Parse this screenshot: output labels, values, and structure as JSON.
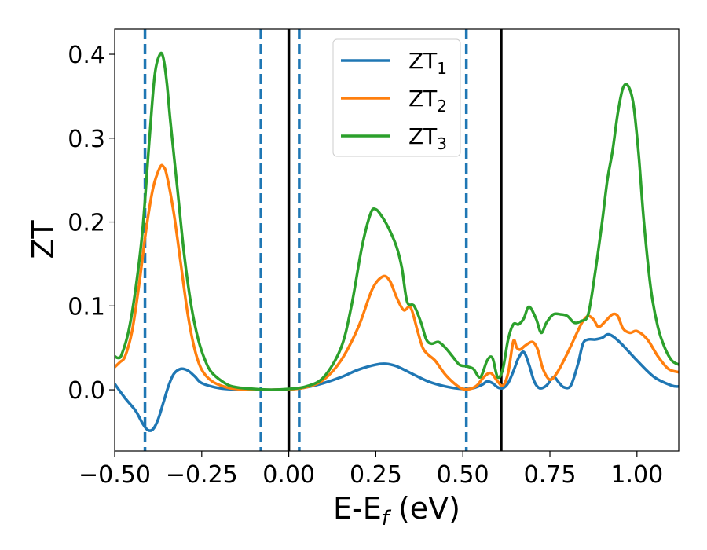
{
  "chart_data": {
    "type": "line",
    "xlabel_main": "E-E",
    "xlabel_sub": "f",
    "xlabel_unit": " (eV)",
    "ylabel": "ZT",
    "xlim": [
      -0.5,
      1.12
    ],
    "ylim": [
      -0.073,
      0.43
    ],
    "xticks": [
      -0.5,
      -0.25,
      0.0,
      0.25,
      0.5,
      0.75,
      1.0
    ],
    "xtick_labels": [
      "−0.50",
      "−0.25",
      "0.00",
      "0.25",
      "0.50",
      "0.75",
      "1.00"
    ],
    "yticks": [
      0.0,
      0.1,
      0.2,
      0.3,
      0.4
    ],
    "ytick_labels": [
      "0.0",
      "0.1",
      "0.2",
      "0.3",
      "0.4"
    ],
    "legend_position": "top-center",
    "vlines": [
      {
        "x": -0.413,
        "style": "dashed",
        "color": "#1f77b4"
      },
      {
        "x": -0.08,
        "style": "dashed",
        "color": "#1f77b4"
      },
      {
        "x": 0.0,
        "style": "solid",
        "color": "#000000"
      },
      {
        "x": 0.03,
        "style": "dashed",
        "color": "#1f77b4"
      },
      {
        "x": 0.51,
        "style": "dashed",
        "color": "#1f77b4"
      },
      {
        "x": 0.61,
        "style": "solid",
        "color": "#000000"
      }
    ],
    "series": [
      {
        "name_main": "ZT",
        "name_sub": "1",
        "color": "#1f77b4",
        "x": [
          -0.5,
          -0.47,
          -0.44,
          -0.42,
          -0.405,
          -0.39,
          -0.375,
          -0.36,
          -0.345,
          -0.33,
          -0.31,
          -0.29,
          -0.27,
          -0.25,
          -0.2,
          -0.15,
          -0.1,
          -0.05,
          0.0,
          0.05,
          0.1,
          0.15,
          0.2,
          0.25,
          0.28,
          0.31,
          0.35,
          0.4,
          0.45,
          0.5,
          0.53,
          0.555,
          0.57,
          0.585,
          0.6,
          0.615,
          0.63,
          0.645,
          0.66,
          0.675,
          0.69,
          0.705,
          0.72,
          0.74,
          0.76,
          0.775,
          0.79,
          0.81,
          0.83,
          0.845,
          0.86,
          0.88,
          0.9,
          0.92,
          0.95,
          1.0,
          1.05,
          1.1,
          1.12
        ],
        "y": [
          0.007,
          -0.01,
          -0.025,
          -0.04,
          -0.048,
          -0.047,
          -0.035,
          -0.015,
          0.005,
          0.019,
          0.025,
          0.023,
          0.016,
          0.008,
          0.002,
          0.0005,
          0.0,
          0.0,
          0.0005,
          0.003,
          0.008,
          0.015,
          0.024,
          0.03,
          0.031,
          0.028,
          0.02,
          0.01,
          0.004,
          0.001,
          0.002,
          0.006,
          0.01,
          0.008,
          0.003,
          0.002,
          0.008,
          0.022,
          0.038,
          0.045,
          0.03,
          0.01,
          0.002,
          0.005,
          0.015,
          0.009,
          0.003,
          0.005,
          0.03,
          0.055,
          0.06,
          0.06,
          0.062,
          0.066,
          0.057,
          0.035,
          0.015,
          0.005,
          0.004
        ]
      },
      {
        "name_main": "ZT",
        "name_sub": "2",
        "color": "#ff7f0e",
        "x": [
          -0.5,
          -0.485,
          -0.47,
          -0.45,
          -0.43,
          -0.41,
          -0.39,
          -0.37,
          -0.36,
          -0.35,
          -0.33,
          -0.31,
          -0.29,
          -0.27,
          -0.25,
          -0.22,
          -0.18,
          -0.15,
          -0.1,
          -0.05,
          0.0,
          0.05,
          0.1,
          0.15,
          0.2,
          0.24,
          0.27,
          0.29,
          0.31,
          0.33,
          0.35,
          0.37,
          0.385,
          0.4,
          0.42,
          0.45,
          0.48,
          0.5,
          0.52,
          0.54,
          0.56,
          0.58,
          0.6,
          0.615,
          0.63,
          0.645,
          0.655,
          0.665,
          0.68,
          0.7,
          0.715,
          0.73,
          0.75,
          0.77,
          0.79,
          0.81,
          0.83,
          0.845,
          0.86,
          0.875,
          0.89,
          0.91,
          0.93,
          0.945,
          0.96,
          0.98,
          1.0,
          1.03,
          1.06,
          1.09,
          1.12
        ],
        "y": [
          0.027,
          0.033,
          0.04,
          0.07,
          0.125,
          0.19,
          0.24,
          0.265,
          0.266,
          0.255,
          0.21,
          0.15,
          0.09,
          0.048,
          0.024,
          0.01,
          0.003,
          0.001,
          0.0,
          0.0,
          0.0005,
          0.003,
          0.012,
          0.035,
          0.075,
          0.12,
          0.135,
          0.13,
          0.11,
          0.095,
          0.098,
          0.07,
          0.05,
          0.042,
          0.035,
          0.018,
          0.006,
          0.001,
          0.001,
          0.005,
          0.015,
          0.02,
          0.01,
          0.005,
          0.02,
          0.058,
          0.05,
          0.048,
          0.053,
          0.057,
          0.048,
          0.025,
          0.012,
          0.02,
          0.035,
          0.052,
          0.07,
          0.082,
          0.088,
          0.084,
          0.075,
          0.082,
          0.09,
          0.088,
          0.073,
          0.068,
          0.07,
          0.06,
          0.04,
          0.025,
          0.021
        ]
      },
      {
        "name_main": "ZT",
        "name_sub": "3",
        "color": "#2ca02c",
        "x": [
          -0.5,
          -0.49,
          -0.48,
          -0.46,
          -0.44,
          -0.42,
          -0.4,
          -0.385,
          -0.37,
          -0.36,
          -0.35,
          -0.34,
          -0.32,
          -0.3,
          -0.28,
          -0.26,
          -0.24,
          -0.22,
          -0.18,
          -0.15,
          -0.1,
          -0.05,
          0.0,
          0.05,
          0.1,
          0.15,
          0.18,
          0.21,
          0.235,
          0.25,
          0.27,
          0.29,
          0.31,
          0.325,
          0.34,
          0.36,
          0.38,
          0.395,
          0.41,
          0.43,
          0.45,
          0.47,
          0.49,
          0.51,
          0.53,
          0.55,
          0.57,
          0.585,
          0.6,
          0.615,
          0.63,
          0.645,
          0.66,
          0.675,
          0.69,
          0.71,
          0.725,
          0.74,
          0.76,
          0.78,
          0.8,
          0.82,
          0.84,
          0.86,
          0.88,
          0.9,
          0.915,
          0.93,
          0.945,
          0.96,
          0.975,
          0.99,
          1.005,
          1.02,
          1.04,
          1.06,
          1.08,
          1.1,
          1.12
        ],
        "y": [
          0.04,
          0.038,
          0.042,
          0.07,
          0.12,
          0.19,
          0.3,
          0.375,
          0.4,
          0.395,
          0.365,
          0.32,
          0.24,
          0.16,
          0.1,
          0.06,
          0.035,
          0.02,
          0.007,
          0.003,
          0.001,
          0.0,
          0.001,
          0.004,
          0.015,
          0.05,
          0.1,
          0.17,
          0.21,
          0.215,
          0.205,
          0.19,
          0.17,
          0.145,
          0.105,
          0.1,
          0.08,
          0.06,
          0.055,
          0.057,
          0.05,
          0.04,
          0.03,
          0.028,
          0.025,
          0.015,
          0.035,
          0.038,
          0.015,
          0.025,
          0.06,
          0.078,
          0.078,
          0.085,
          0.099,
          0.085,
          0.068,
          0.08,
          0.09,
          0.09,
          0.088,
          0.08,
          0.082,
          0.09,
          0.14,
          0.2,
          0.25,
          0.285,
          0.33,
          0.36,
          0.362,
          0.34,
          0.28,
          0.2,
          0.12,
          0.075,
          0.05,
          0.035,
          0.03
        ]
      }
    ]
  }
}
